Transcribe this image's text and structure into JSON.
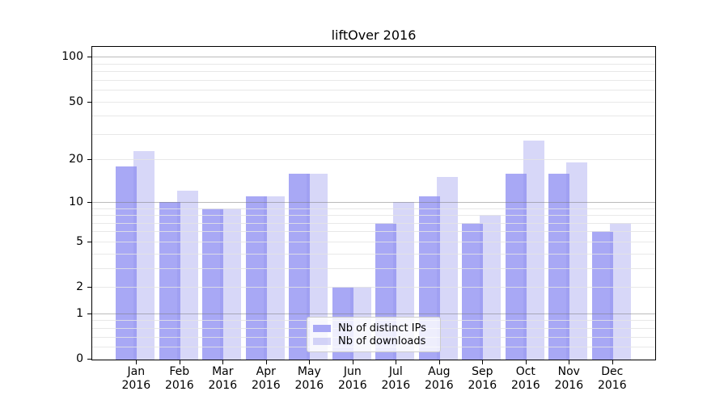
{
  "page": {
    "background": "#ffffff"
  },
  "chart_data": {
    "type": "bar",
    "title": "liftOver 2016",
    "categories": [
      "Jan",
      "Feb",
      "Mar",
      "Apr",
      "May",
      "Jun",
      "Jul",
      "Aug",
      "Sep",
      "Oct",
      "Nov",
      "Dec"
    ],
    "category_year": "2016",
    "series": [
      {
        "name": "Nb of distinct IPs",
        "color": "#a8a8f5",
        "values": [
          18,
          10,
          9,
          11,
          16,
          2,
          7,
          11,
          7,
          16,
          16,
          6
        ]
      },
      {
        "name": "Nb of downloads",
        "color": "rgba(146,146,236,0.37)",
        "color_on_white": "#d8d8f8",
        "values": [
          23,
          12,
          9,
          11,
          16,
          2,
          10,
          15,
          8,
          27,
          19,
          7
        ]
      }
    ],
    "y_axis": {
      "scale": "log1p",
      "range": [
        0,
        100
      ],
      "tick_values": [
        0,
        1,
        2,
        5,
        10,
        20,
        50,
        100
      ],
      "tick_labels": [
        "0",
        "1",
        "2",
        "5",
        "10",
        "20",
        "50",
        "100"
      ],
      "major_gridlines": [
        1,
        10,
        100
      ],
      "minor_gridlines": [
        0.2,
        0.4,
        0.6,
        0.8,
        2,
        3,
        4,
        5,
        6,
        7,
        8,
        9,
        20,
        30,
        40,
        50,
        60,
        70,
        80,
        90
      ],
      "grid": true
    },
    "x_axis": {
      "tick_labels_line2": "2016"
    },
    "legend": {
      "position": "lower center",
      "entries": [
        {
          "label": "Nb of distinct IPs",
          "color": "#a8a8f5"
        },
        {
          "label": "Nb of downloads",
          "color": "rgba(146,146,236,0.37)"
        }
      ]
    },
    "colors": {
      "bar_dark": "#a8a8f5",
      "bar_light": "#d8d8f8",
      "major_grid": "#b8b8b8",
      "minor_grid": "#e8e8e8"
    }
  }
}
